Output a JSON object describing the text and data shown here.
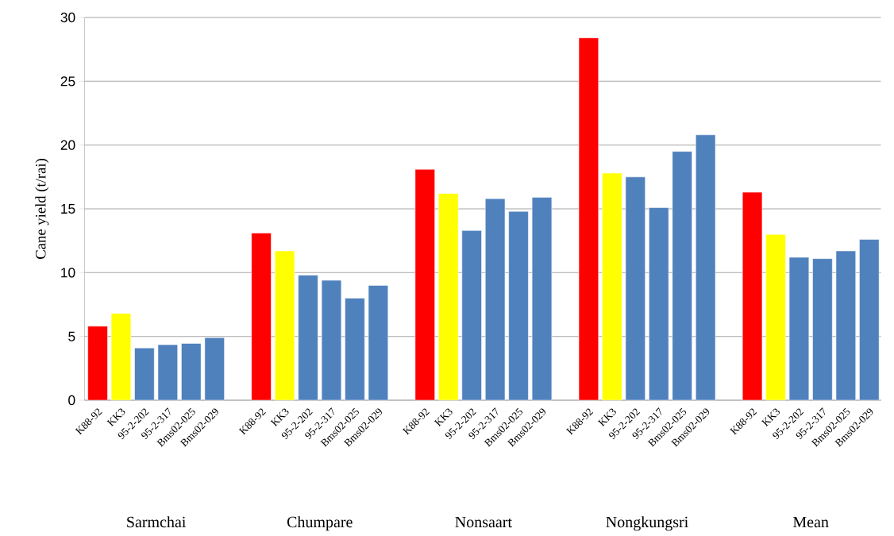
{
  "chart_data": {
    "type": "bar",
    "ylabel": "Cane yield (t/rai)",
    "categories": [
      "K88-92",
      "KK3",
      "95-2-202",
      "95-2-317",
      "Bms02-025",
      "Bms02-029",
      null,
      "K88-92",
      "KK3",
      "95-2-202",
      "95-2-317",
      "Bms02-025",
      "Bms02-029",
      null,
      "K88-92",
      "KK3",
      "95-2-202",
      "95-2-317",
      "Bms02-025",
      "Bms02-029",
      null,
      "K88-92",
      "KK3",
      "95-2-202",
      "95-2-317",
      "Bms02-025",
      "Bms02-029",
      null,
      "K88-92",
      "KK3",
      "95-2-202",
      "95-2-317",
      "Bms02-025",
      "Bms02-029"
    ],
    "values": [
      5.8,
      6.8,
      4.1,
      4.35,
      4.45,
      4.9,
      null,
      13.1,
      11.7,
      9.8,
      9.4,
      8.0,
      9.0,
      null,
      18.1,
      16.2,
      13.3,
      15.8,
      14.8,
      15.9,
      null,
      28.4,
      17.8,
      17.5,
      15.1,
      19.5,
      20.8,
      null,
      16.3,
      13.0,
      11.2,
      11.1,
      11.7,
      12.6
    ],
    "colors": [
      "#ff0000",
      "#ffff00",
      "#4f81bd",
      "#4f81bd",
      "#4f81bd",
      "#4f81bd",
      null,
      "#ff0000",
      "#ffff00",
      "#4f81bd",
      "#4f81bd",
      "#4f81bd",
      "#4f81bd",
      null,
      "#ff0000",
      "#ffff00",
      "#4f81bd",
      "#4f81bd",
      "#4f81bd",
      "#4f81bd",
      null,
      "#ff0000",
      "#ffff00",
      "#4f81bd",
      "#4f81bd",
      "#4f81bd",
      "#4f81bd",
      null,
      "#ff0000",
      "#ffff00",
      "#4f81bd",
      "#4f81bd",
      "#4f81bd",
      "#4f81bd"
    ],
    "ylim": [
      0,
      30
    ],
    "yticks": [
      0,
      5,
      10,
      15,
      20,
      25,
      30
    ],
    "grid": "y",
    "annotations": [
      "Sarmchai",
      "Chumpare",
      "Nonsaart",
      "Nongkungsri",
      "Mean"
    ]
  }
}
